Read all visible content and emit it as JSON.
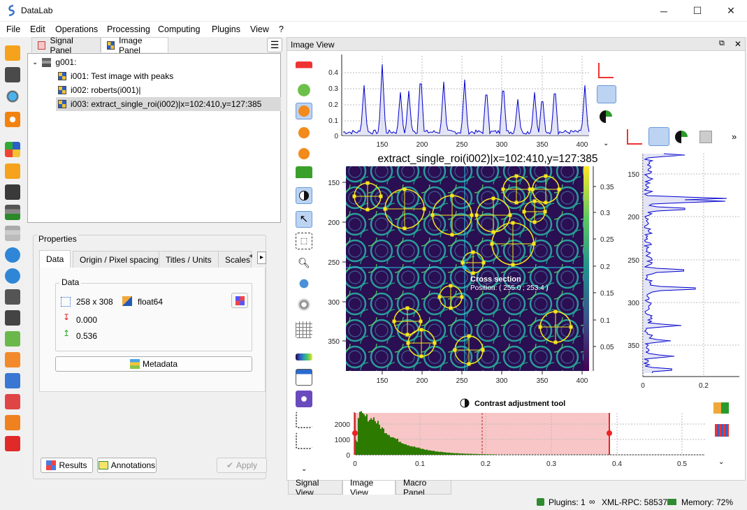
{
  "window": {
    "title": "DataLab",
    "minimize": "─",
    "maximize": "☐",
    "close": "✕"
  },
  "menu": [
    "File",
    "Edit",
    "Operations",
    "Processing",
    "Computing",
    "Plugins",
    "View",
    "?"
  ],
  "left_panel": {
    "tabs": [
      {
        "label": "Signal Panel",
        "icon": "signal-icon"
      },
      {
        "label": "Image Panel",
        "icon": "image-icon"
      }
    ],
    "tree": {
      "group": "g001:",
      "items": [
        "i001: Test image with peaks",
        "i002: roberts(i001)|",
        "i003: extract_single_roi(i002)|x=102:410,y=127:385"
      ],
      "selected": 2
    },
    "properties": {
      "title": "Properties",
      "tabs": [
        "Data",
        "Origin / Pixel spacing",
        "Titles / Units",
        "Scales"
      ],
      "group_title": "Data",
      "size": "258 x 308",
      "dtype": "float64",
      "min": "0.000",
      "max": "0.536",
      "metadata_label": "Metadata",
      "results_label": "Results",
      "annotations_label": "Annotations",
      "apply_label": "Apply"
    }
  },
  "image_view": {
    "title": "Image View",
    "float_icon": "⧉",
    "close_icon": "✕",
    "image_title": "extract_single_roi(i002)|x=102:410,y=127:385",
    "x_ticks": [
      "150",
      "200",
      "250",
      "300",
      "350",
      "400"
    ],
    "image_x_ticks": [
      "150",
      "200",
      "250",
      "300",
      "350",
      "400"
    ],
    "y_ticks": [
      "150",
      "200",
      "250",
      "300",
      "350"
    ],
    "colorbar_ticks": [
      "0.35",
      "0.3",
      "0.25",
      "0.2",
      "0.15",
      "0.1",
      "0.05"
    ],
    "top_profile_y_ticks": [
      "0.4",
      "0.3",
      "0.2",
      "0.1",
      "0"
    ],
    "right_profile_x_ticks": [
      "0",
      "0.2"
    ],
    "cursor": {
      "label": "Cross section",
      "position": "Position: ( 255.0 ; 253.4 )"
    },
    "contrast_title": "Contrast adjustment tool",
    "hist_y_ticks": [
      "2000",
      "1000",
      "0"
    ],
    "hist_x_ticks": [
      "0",
      "0.1",
      "0.2",
      "0.3",
      "0.4",
      "0.5"
    ],
    "more_icon": "»",
    "chevron": "⌄"
  },
  "bottom_tabs": [
    "Signal View",
    "Image View",
    "Macro Panel"
  ],
  "status": {
    "plugins": "Plugins: 1",
    "xmlrpc": "XML-RPC: 58537",
    "memory": "Memory: 72%"
  },
  "colors": {
    "accent": "#2f6fd6",
    "profile": "#0000cc",
    "circle": "#f5e71b",
    "hist": "#2d7a00",
    "range": "#f8c6c6",
    "cursor": "#29c6e8"
  }
}
